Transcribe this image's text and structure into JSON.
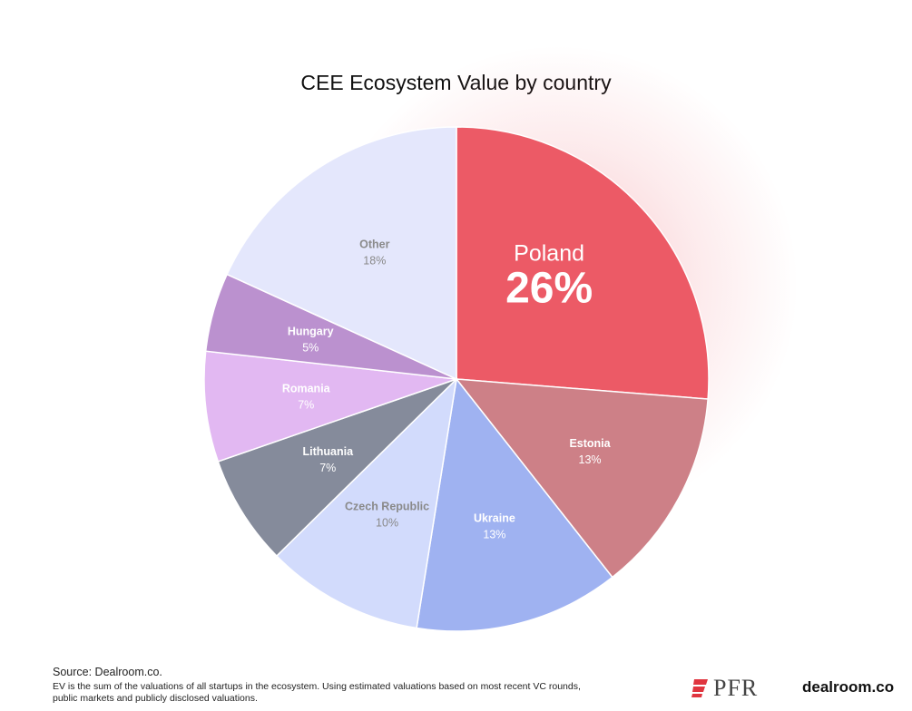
{
  "chart_data": {
    "type": "pie",
    "title": "CEE Ecosystem Value by country",
    "slices": [
      {
        "label": "Poland",
        "value": 26,
        "display": "26%",
        "color": "#ec5a66",
        "text_color": "#ffffff"
      },
      {
        "label": "Estonia",
        "value": 13,
        "display": "13%",
        "color": "#cd8087",
        "text_color": "#ffffff"
      },
      {
        "label": "Ukraine",
        "value": 13,
        "display": "13%",
        "color": "#9fb2f1",
        "text_color": "#ffffff"
      },
      {
        "label": "Czech Republic",
        "value": 10,
        "display": "10%",
        "color": "#d2dbfc",
        "text_color": "#8a8a8a"
      },
      {
        "label": "Lithuania",
        "value": 7,
        "display": "7%",
        "color": "#858b9b",
        "text_color": "#ffffff"
      },
      {
        "label": "Romania",
        "value": 7,
        "display": "7%",
        "color": "#e2b8f2",
        "text_color": "#ffffff"
      },
      {
        "label": "Hungary",
        "value": 5,
        "display": "5%",
        "color": "#bb91cf",
        "text_color": "#ffffff"
      },
      {
        "label": "Other",
        "value": 18,
        "display": "18%",
        "color": "#e4e7fc",
        "text_color": "#8a8a8a"
      }
    ],
    "start": "12 o'clock",
    "direction": "clockwise",
    "highlight": "Poland"
  },
  "footer": {
    "source": "Source:  Dealroom.co.",
    "note": "EV is the sum of the valuations of all startups in the ecosystem. Using estimated valuations based on most recent VC rounds, public markets and publicly disclosed valuations."
  },
  "logos": {
    "pfr": "PFR",
    "dealroom": "dealroom.co"
  }
}
